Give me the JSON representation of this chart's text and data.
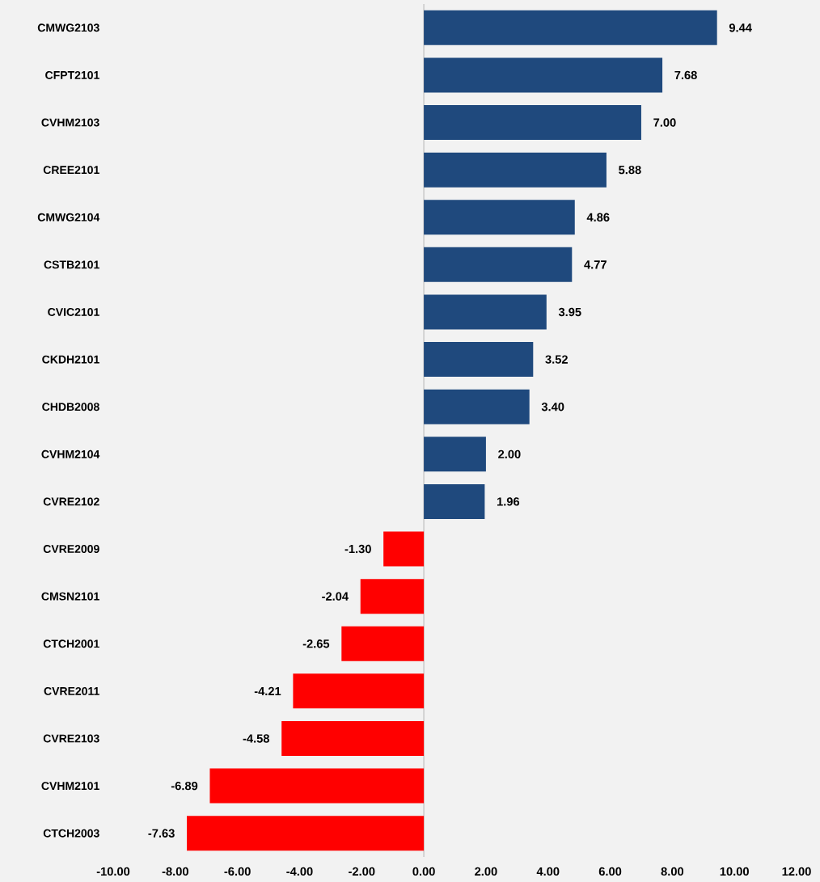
{
  "chart_data": {
    "type": "bar",
    "orientation": "horizontal",
    "categories": [
      "CMWG2103",
      "CFPT2101",
      "CVHM2103",
      "CREE2101",
      "CMWG2104",
      "CSTB2101",
      "CVIC2101",
      "CKDH2101",
      "CHDB2008",
      "CVHM2104",
      "CVRE2102",
      "CVRE2009",
      "CMSN2101",
      "CTCH2001",
      "CVRE2011",
      "CVRE2103",
      "CVHM2101",
      "CTCH2003"
    ],
    "values": [
      9.44,
      7.68,
      7.0,
      5.88,
      4.86,
      4.77,
      3.95,
      3.52,
      3.4,
      2.0,
      1.96,
      -1.3,
      -2.04,
      -2.65,
      -4.21,
      -4.58,
      -6.89,
      -7.63
    ],
    "value_labels": [
      "9.44",
      "7.68",
      "7.00",
      "5.88",
      "4.86",
      "4.77",
      "3.95",
      "3.52",
      "3.40",
      "2.00",
      "1.96",
      "-1.30",
      "-2.04",
      "-2.65",
      "-4.21",
      "-4.58",
      "-6.89",
      "-7.63"
    ],
    "colors": [
      "#1f497d",
      "#1f497d",
      "#1f497d",
      "#1f497d",
      "#1f497d",
      "#1f497d",
      "#1f497d",
      "#1f497d",
      "#1f497d",
      "#1f497d",
      "#1f497d",
      "#ff0000",
      "#ff0000",
      "#ff0000",
      "#ff0000",
      "#ff0000",
      "#ff0000",
      "#ff0000"
    ],
    "xlim": [
      -10,
      12
    ],
    "xticks": [
      {
        "value": -10,
        "label": "-10.00"
      },
      {
        "value": -8,
        "label": "-8.00"
      },
      {
        "value": -6,
        "label": "-6.00"
      },
      {
        "value": -4,
        "label": "-4.00"
      },
      {
        "value": -2,
        "label": "-2.00"
      },
      {
        "value": 0,
        "label": "0.00"
      },
      {
        "value": 2,
        "label": "2.00"
      },
      {
        "value": 4,
        "label": "4.00"
      },
      {
        "value": 6,
        "label": "6.00"
      },
      {
        "value": 8,
        "label": "8.00"
      },
      {
        "value": 10,
        "label": "10.00"
      },
      {
        "value": 12,
        "label": "12.00"
      }
    ]
  }
}
